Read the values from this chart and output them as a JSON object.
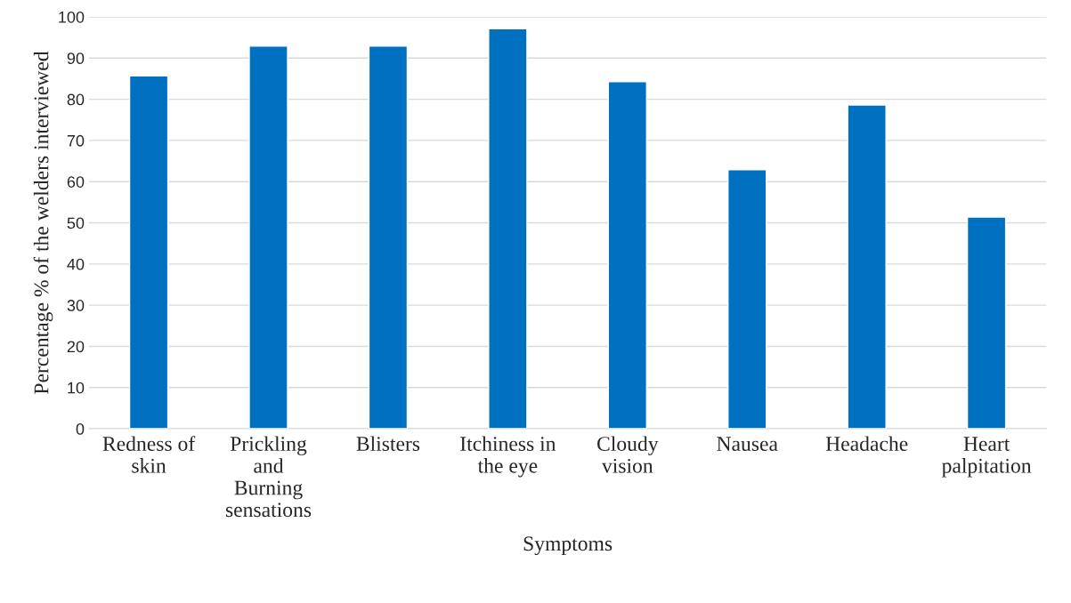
{
  "chart_data": {
    "type": "bar",
    "categories": [
      "Redness of\nskin",
      "Prickling\nand\nBurning\nsensations",
      "Blisters",
      "Itchiness in\nthe eye",
      "Cloudy\nvision",
      "Nausea",
      "Headache",
      "Heart\npalpitation"
    ],
    "values": [
      85.7,
      92.9,
      92.9,
      97.1,
      84.3,
      62.9,
      78.6,
      51.4
    ],
    "color": "#0070c0",
    "xlabel": "Symptoms",
    "ylabel": "Percentage % of the welders interviewed",
    "ylim": [
      0,
      100
    ],
    "yticks": [
      0,
      10,
      20,
      30,
      40,
      50,
      60,
      70,
      80,
      90,
      100
    ],
    "grid": "y",
    "legend": false
  }
}
